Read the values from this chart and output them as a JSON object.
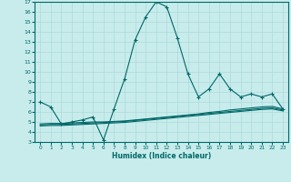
{
  "xlabel": "Humidex (Indice chaleur)",
  "bg_color": "#c8ecec",
  "grid_color": "#aed8d8",
  "plot_color": "#006868",
  "xlim": [
    -0.5,
    23.5
  ],
  "ylim": [
    3,
    17
  ],
  "xticks": [
    0,
    1,
    2,
    3,
    4,
    5,
    6,
    7,
    8,
    9,
    10,
    11,
    12,
    13,
    14,
    15,
    16,
    17,
    18,
    19,
    20,
    21,
    22,
    23
  ],
  "yticks": [
    3,
    4,
    5,
    6,
    7,
    8,
    9,
    10,
    11,
    12,
    13,
    14,
    15,
    16,
    17
  ],
  "line1_x": [
    0,
    1,
    2,
    3,
    4,
    5,
    6,
    7,
    8,
    9,
    10,
    11,
    12,
    13,
    14,
    15,
    16,
    17,
    18,
    19,
    20,
    21,
    22,
    23
  ],
  "line1_y": [
    7.0,
    6.5,
    4.8,
    5.0,
    5.2,
    5.5,
    3.2,
    6.3,
    9.3,
    13.2,
    15.5,
    17.0,
    16.5,
    13.4,
    9.8,
    7.5,
    8.3,
    9.8,
    8.3,
    7.5,
    7.8,
    7.5,
    7.8,
    6.3
  ],
  "line2_x": [
    0,
    1,
    2,
    3,
    4,
    5,
    6,
    7,
    8,
    9,
    10,
    11,
    12,
    13,
    14,
    15,
    16,
    17,
    18,
    19,
    20,
    21,
    22,
    23
  ],
  "line2_y": [
    4.8,
    4.85,
    4.85,
    4.9,
    4.95,
    5.0,
    5.0,
    5.05,
    5.1,
    5.2,
    5.3,
    5.4,
    5.5,
    5.6,
    5.7,
    5.8,
    5.95,
    6.05,
    6.2,
    6.3,
    6.4,
    6.5,
    6.55,
    6.3
  ],
  "line3_x": [
    0,
    1,
    2,
    3,
    4,
    5,
    6,
    7,
    8,
    9,
    10,
    11,
    12,
    13,
    14,
    15,
    16,
    17,
    18,
    19,
    20,
    21,
    22,
    23
  ],
  "line3_y": [
    4.7,
    4.75,
    4.75,
    4.8,
    4.85,
    4.9,
    4.95,
    5.0,
    5.05,
    5.15,
    5.25,
    5.35,
    5.45,
    5.55,
    5.65,
    5.75,
    5.85,
    5.95,
    6.05,
    6.15,
    6.25,
    6.35,
    6.4,
    6.2
  ],
  "line4_x": [
    0,
    1,
    2,
    3,
    4,
    5,
    6,
    7,
    8,
    9,
    10,
    11,
    12,
    13,
    14,
    15,
    16,
    17,
    18,
    19,
    20,
    21,
    22,
    23
  ],
  "line4_y": [
    4.6,
    4.65,
    4.65,
    4.7,
    4.75,
    4.8,
    4.85,
    4.9,
    4.95,
    5.05,
    5.15,
    5.25,
    5.35,
    5.45,
    5.55,
    5.65,
    5.75,
    5.85,
    5.95,
    6.05,
    6.15,
    6.25,
    6.3,
    6.1
  ]
}
